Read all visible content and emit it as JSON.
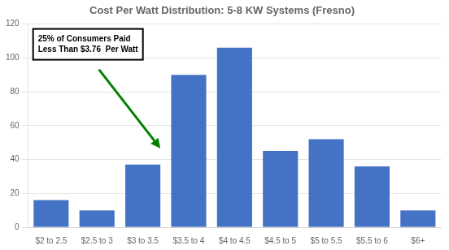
{
  "chart_data": {
    "type": "bar",
    "title": "Cost Per Watt Distribution: 5-8 KW Systems (Fresno)",
    "categories": [
      "$2 to 2.5",
      "$2.5 to 3",
      "$3 to 3.5",
      "$3.5 to 4",
      "$4 to 4.5",
      "$4.5 to 5",
      "$5 to 5.5",
      "$5.5 to 6",
      "$6+"
    ],
    "values": [
      16,
      10,
      37,
      90,
      106,
      45,
      52,
      36,
      10
    ],
    "color": "#4472C4",
    "ylim": [
      0,
      120
    ],
    "yticks": [
      0,
      20,
      40,
      60,
      80,
      100,
      120
    ],
    "grid": true,
    "annotation": "25% of Consumers Paid\nLess Than $3.76  Per Watt"
  }
}
